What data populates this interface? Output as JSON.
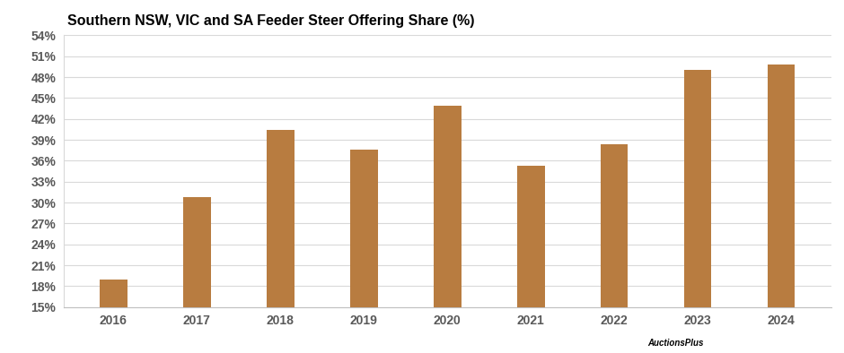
{
  "chart_data": {
    "type": "bar",
    "title": "Southern NSW, VIC and SA Feeder Steer Offering Share (%)",
    "categories": [
      "2016",
      "2017",
      "2018",
      "2019",
      "2020",
      "2021",
      "2022",
      "2023",
      "2024"
    ],
    "values": [
      19.0,
      30.8,
      40.4,
      37.6,
      43.9,
      35.3,
      38.4,
      49.0,
      49.8
    ],
    "color": "#b87c40",
    "ylim": [
      15,
      54
    ],
    "yticks": [
      {
        "value": 15,
        "label": "15%"
      },
      {
        "value": 18,
        "label": "18%"
      },
      {
        "value": 21,
        "label": "21%"
      },
      {
        "value": 24,
        "label": "24%"
      },
      {
        "value": 27,
        "label": "27%"
      },
      {
        "value": 30,
        "label": "30%"
      },
      {
        "value": 33,
        "label": "33%"
      },
      {
        "value": 36,
        "label": "36%"
      },
      {
        "value": 39,
        "label": "39%"
      },
      {
        "value": 42,
        "label": "42%"
      },
      {
        "value": 45,
        "label": "45%"
      },
      {
        "value": 48,
        "label": "48%"
      },
      {
        "value": 51,
        "label": "51%"
      },
      {
        "value": 54,
        "label": "54%"
      }
    ],
    "grid": true,
    "source": "AuctionsPlus"
  }
}
